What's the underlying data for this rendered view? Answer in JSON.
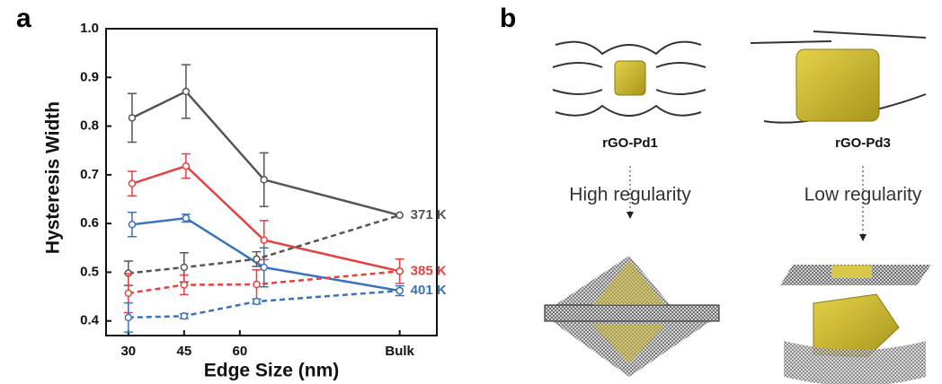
{
  "chart_data": {
    "type": "line",
    "x_label": "Edge Size (nm)",
    "y_label": "Hysteresis Width",
    "xlim": [
      24,
      113
    ],
    "xticks": [
      30,
      45,
      60,
      {
        "value": 103,
        "label": "Bulk"
      }
    ],
    "ylim": [
      0.37,
      1.0
    ],
    "yticks": [
      0.4,
      0.5,
      0.6,
      0.7,
      0.8,
      0.9,
      {
        "value": 1,
        "label": "1.0"
      }
    ],
    "series": [
      {
        "name": "371 K",
        "color": "#555555",
        "dash": false,
        "x": [
          31,
          45.5,
          66.5,
          103
        ],
        "values": [
          0.817,
          0.871,
          0.69,
          0.617
        ],
        "errors": [
          0.05,
          0.055,
          0.055,
          null
        ]
      },
      {
        "name": "385 K",
        "color": "#e8403f",
        "dash": false,
        "x": [
          31,
          45.5,
          66.5,
          103
        ],
        "values": [
          0.682,
          0.718,
          0.566,
          0.502
        ],
        "errors": [
          0.025,
          0.025,
          0.04,
          null
        ]
      },
      {
        "name": "401 K",
        "color": "#3a72c0",
        "dash": false,
        "x": [
          31,
          45.5,
          66.5,
          103
        ],
        "values": [
          0.598,
          0.611,
          0.51,
          0.462
        ],
        "errors": [
          0.025,
          0.008,
          0.04,
          null
        ]
      },
      {
        "color": "#555555",
        "dash": true,
        "x": [
          30,
          45,
          64.5,
          103
        ],
        "values": [
          0.498,
          0.51,
          0.527,
          0.617
        ],
        "errors": [
          0.025,
          0.03,
          0.015,
          null
        ]
      },
      {
        "color": "#e8403f",
        "dash": true,
        "x": [
          30,
          45,
          64.5,
          103
        ],
        "values": [
          0.457,
          0.474,
          0.475,
          0.502
        ],
        "errors": [
          0.04,
          0.02,
          0.03,
          0.025
        ]
      },
      {
        "color": "#3a72c0",
        "dash": true,
        "x": [
          30,
          45,
          64.5,
          103
        ],
        "values": [
          0.407,
          0.41,
          0.44,
          0.462
        ],
        "errors": [
          0.03,
          0.005,
          0.005,
          0.01
        ]
      }
    ]
  },
  "panels": {
    "a": "a",
    "b": "b"
  },
  "diagram": {
    "left": {
      "label": "rGO-Pd1",
      "regularity": "High regularity"
    },
    "right": {
      "label": "rGO-Pd3",
      "regularity": "Low regularity"
    }
  }
}
